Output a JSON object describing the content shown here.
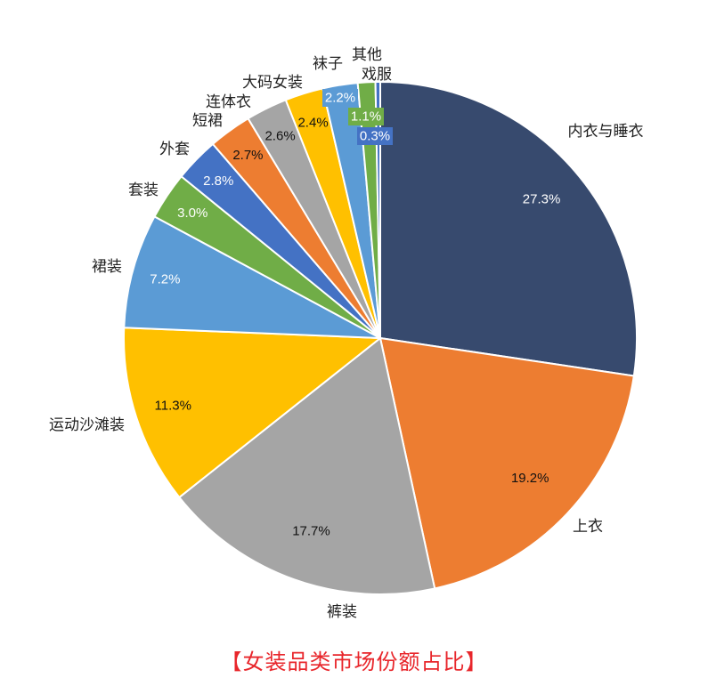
{
  "chart_data": {
    "type": "pie",
    "title": "【女装品类市场份额占比】",
    "start_angle_deg": 0,
    "direction": "clockwise",
    "categories": [
      "内衣与睡衣",
      "上衣",
      "裤装",
      "运动沙滩装",
      "裙装",
      "套装",
      "外套",
      "短裙",
      "连体衣",
      "大码女装",
      "袜子",
      "其他",
      "戏服"
    ],
    "values": [
      27.3,
      19.2,
      17.7,
      11.3,
      7.2,
      3.0,
      2.8,
      2.7,
      2.6,
      2.4,
      2.2,
      1.1,
      0.3
    ],
    "value_labels": [
      "27.3%",
      "19.2%",
      "17.7%",
      "11.3%",
      "7.2%",
      "3.0%",
      "2.8%",
      "2.7%",
      "2.6%",
      "2.4%",
      "2.2%",
      "1.1%",
      "0.3%"
    ],
    "colors": [
      "#374a6e",
      "#ed7d31",
      "#a5a5a5",
      "#ffc000",
      "#5b9bd5",
      "#70ad47",
      "#4472c4",
      "#ed7d31",
      "#a5a5a5",
      "#ffc000",
      "#5b9bd5",
      "#70ad47",
      "#4472c4"
    ],
    "legend": "none"
  }
}
